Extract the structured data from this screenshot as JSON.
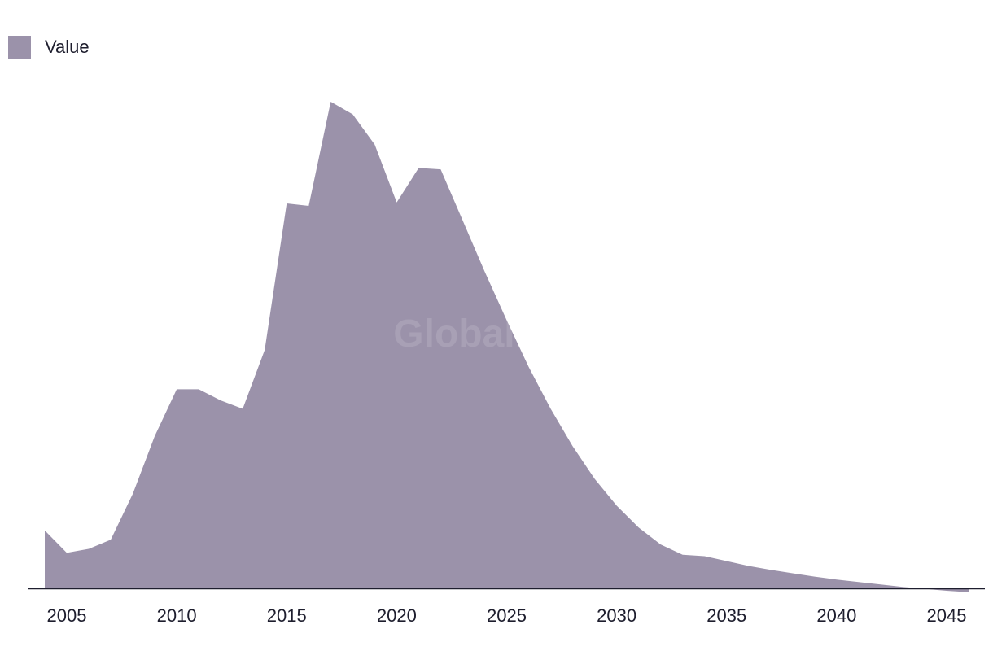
{
  "watermark": "GlobalData",
  "chart_data": {
    "type": "area",
    "title": "",
    "xlabel": "",
    "ylabel": "",
    "legend": {
      "position": "top-left",
      "entries": [
        "Value"
      ]
    },
    "grid": false,
    "colors": {
      "area": "#9b92aa",
      "axis": "#1e1e2e",
      "text": "#1e1e2e"
    },
    "xlim": [
      2004,
      2046
    ],
    "ylim": [
      0,
      100
    ],
    "x_ticks": [
      2005,
      2010,
      2015,
      2020,
      2025,
      2030,
      2035,
      2040,
      2045
    ],
    "x": [
      2004,
      2005,
      2006,
      2007,
      2008,
      2009,
      2010,
      2011,
      2012,
      2013,
      2014,
      2015,
      2016,
      2017,
      2018,
      2019,
      2020,
      2021,
      2022,
      2023,
      2024,
      2025,
      2026,
      2027,
      2028,
      2029,
      2030,
      2031,
      2032,
      2033,
      2034,
      2035,
      2036,
      2037,
      2038,
      2039,
      2040,
      2041,
      2042,
      2043,
      2044,
      2045,
      2046
    ],
    "series": [
      {
        "name": "Value",
        "values": [
          11.9,
          7.3,
          8.1,
          10.0,
          19.4,
          31.3,
          40.9,
          40.9,
          38.6,
          36.9,
          49.0,
          79.1,
          78.6,
          100.0,
          97.4,
          91.2,
          79.3,
          86.4,
          86.1,
          75.6,
          65.1,
          55.1,
          45.5,
          36.9,
          29.2,
          22.5,
          17.0,
          12.5,
          9.0,
          6.9,
          6.6,
          5.6,
          4.6,
          3.8,
          3.1,
          2.4,
          1.8,
          1.3,
          0.8,
          0.3,
          -0.1,
          -0.5,
          -0.8
        ]
      }
    ]
  }
}
